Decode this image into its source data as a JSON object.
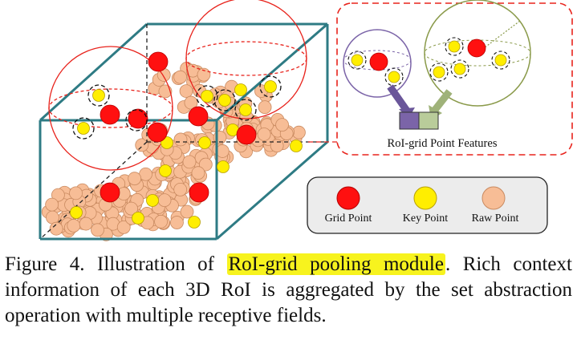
{
  "figure": {
    "inset_label": "RoI-grid Point Features",
    "legend": [
      {
        "label": "Grid Point",
        "fill": "#ff1010",
        "stroke": "#b40000"
      },
      {
        "label": "Key Point",
        "fill": "#ffee00",
        "stroke": "#b8a000"
      },
      {
        "label": "Raw Point",
        "fill": "#f7bd96",
        "stroke": "#c98a60"
      }
    ],
    "colors": {
      "box_edge": "#2e7b84",
      "dashed_red": "#e8231c",
      "purple_sphere": "#7b64a8",
      "green_sphere": "#8a9a4a",
      "feature_purple": "#7b64a8",
      "feature_green": "#b9cc9a"
    }
  },
  "caption": {
    "prefix": "Figure 4. Illustration of ",
    "highlight": "RoI-grid pooling module",
    "suffix": ".  Rich context information of each 3D RoI is aggregated by the set abstraction operation with multiple receptive fields."
  }
}
